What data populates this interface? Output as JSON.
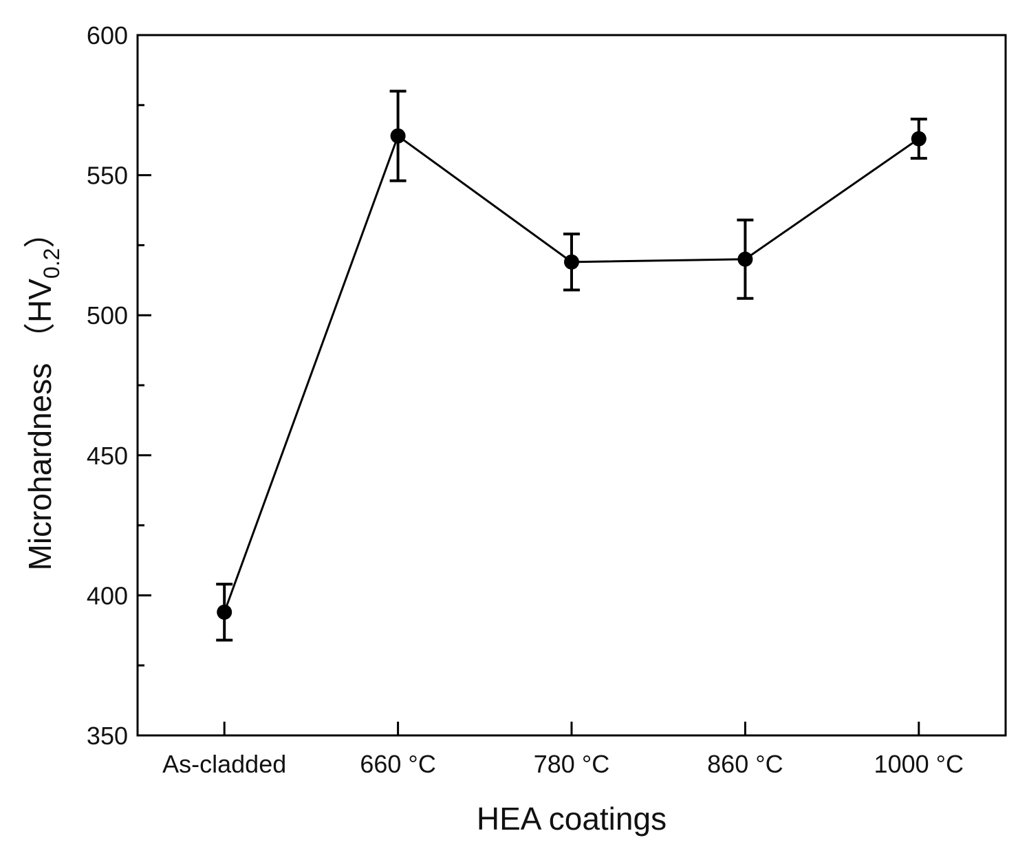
{
  "chart_data": {
    "type": "line",
    "title": "",
    "xlabel": "HEA coatings",
    "ylabel_main": "Microhardness （HV",
    "ylabel_sub": "0.2",
    "ylabel_end": "）",
    "categories": [
      "As-cladded",
      "660 °C",
      "780 °C",
      "860 °C",
      "1000 °C"
    ],
    "series": [
      {
        "name": "Microhardness",
        "values": [
          394,
          564,
          519,
          520,
          563
        ],
        "errors": [
          10,
          16,
          10,
          14,
          7
        ],
        "color": "#000000"
      }
    ],
    "ylim": [
      350,
      600
    ],
    "yticks": [
      350,
      400,
      450,
      500,
      550,
      600
    ],
    "yminor": [
      375,
      425,
      475,
      525,
      575
    ],
    "xlim": [
      -0.5,
      4.5
    ],
    "grid": false,
    "legend": "none"
  }
}
